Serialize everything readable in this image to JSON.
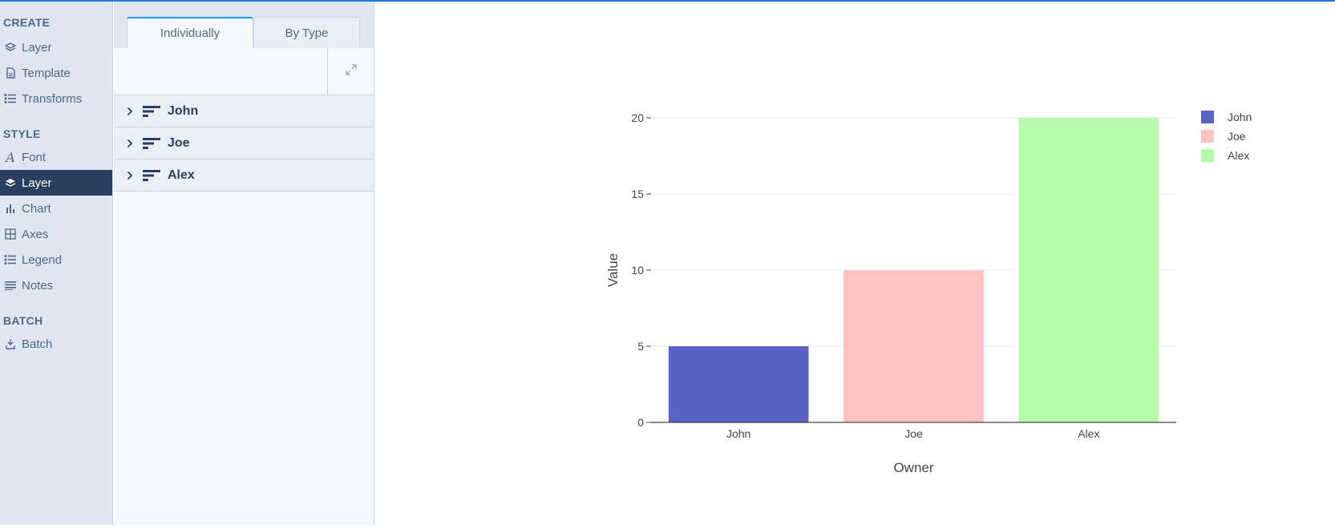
{
  "sidebar": {
    "sections": [
      {
        "title": "CREATE",
        "items": [
          {
            "label": "Layer",
            "icon": "layers-icon"
          },
          {
            "label": "Template",
            "icon": "file-icon"
          },
          {
            "label": "Transforms",
            "icon": "list-icon"
          }
        ]
      },
      {
        "title": "STYLE",
        "items": [
          {
            "label": "Font",
            "icon": "font-icon"
          },
          {
            "label": "Layer",
            "icon": "layers-icon",
            "active": true
          },
          {
            "label": "Chart",
            "icon": "bar-chart-icon"
          },
          {
            "label": "Axes",
            "icon": "grid-icon"
          },
          {
            "label": "Legend",
            "icon": "list-icon"
          },
          {
            "label": "Notes",
            "icon": "text-lines-icon"
          }
        ]
      },
      {
        "title": "BATCH",
        "items": [
          {
            "label": "Batch",
            "icon": "batch-icon"
          }
        ]
      }
    ]
  },
  "panel": {
    "tabs": [
      {
        "label": "Individually",
        "active": true
      },
      {
        "label": "By Type",
        "active": false
      }
    ],
    "traces": [
      {
        "label": "John"
      },
      {
        "label": "Joe"
      },
      {
        "label": "Alex"
      }
    ]
  },
  "colors": {
    "accent": "#119dff",
    "sidebar_bg": "#dfe6f1",
    "active_item": "#2a3f5f",
    "text": "#506784"
  },
  "chart_data": {
    "type": "bar",
    "categories": [
      "John",
      "Joe",
      "Alex"
    ],
    "series": [
      {
        "name": "John",
        "values": [
          5,
          null,
          null
        ],
        "color": "#5a62c6"
      },
      {
        "name": "Joe",
        "values": [
          null,
          10,
          null
        ],
        "color": "#ffc2c2"
      },
      {
        "name": "Alex",
        "values": [
          null,
          null,
          20
        ],
        "color": "#b5fbab"
      }
    ],
    "xlabel": "Owner",
    "ylabel": "Value",
    "ylim": [
      0,
      20
    ],
    "yticks": [
      "0",
      "5",
      "10",
      "15",
      "20"
    ],
    "grid": true,
    "legend": "top-right"
  }
}
